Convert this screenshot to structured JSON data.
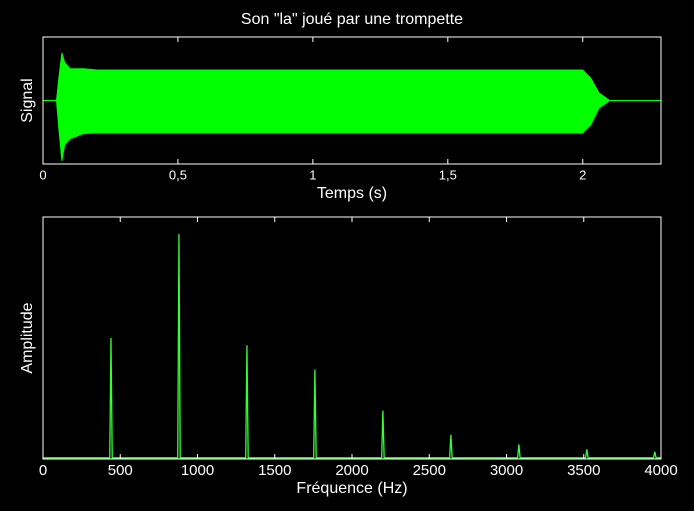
{
  "chart_data": [
    {
      "type": "envelope",
      "title": "Son \"la\" joué par une trompette",
      "xlabel": "Temps (s)",
      "ylabel": "Signal",
      "color": "#00ff00",
      "x": [
        0,
        0.05,
        0.06,
        0.07,
        0.08,
        0.1,
        0.15,
        0.2,
        2.0,
        2.03,
        2.06,
        2.1,
        2.29
      ],
      "upper": [
        0,
        0,
        0.4,
        0.75,
        0.6,
        0.5,
        0.5,
        0.48,
        0.48,
        0.35,
        0.12,
        0,
        0
      ],
      "lower": [
        0,
        0,
        -0.5,
        -0.95,
        -0.7,
        -0.6,
        -0.52,
        -0.51,
        -0.51,
        -0.38,
        -0.12,
        0,
        0
      ],
      "xlim": [
        0,
        2.29
      ],
      "ylim": [
        -1,
        1
      ],
      "xticks": [
        0,
        {
          "value": 0.5,
          "label": "0,5"
        },
        1,
        {
          "value": 1.5,
          "label": "1,5"
        },
        2
      ]
    },
    {
      "type": "line",
      "xlabel": "Fréquence (Hz)",
      "ylabel": "Amplitude",
      "color": "#33ff33",
      "x": [
        0,
        432,
        440,
        448,
        872,
        880,
        888,
        1312,
        1320,
        1328,
        1752,
        1760,
        1768,
        2192,
        2200,
        2208,
        2632,
        2640,
        2648,
        3072,
        3080,
        3088,
        3512,
        3520,
        3528,
        3952,
        3960,
        3968,
        4000
      ],
      "values": [
        0.005,
        0.005,
        0.5,
        0.005,
        0.005,
        0.93,
        0.005,
        0.005,
        0.47,
        0.005,
        0.005,
        0.37,
        0.005,
        0.005,
        0.2,
        0.005,
        0.005,
        0.1,
        0.005,
        0.005,
        0.06,
        0.005,
        0.005,
        0.04,
        0.005,
        0.005,
        0.03,
        0.005,
        0.005
      ],
      "xlim": [
        0,
        4000
      ],
      "ylim": [
        0,
        1
      ],
      "xticks": [
        0,
        500,
        1000,
        1500,
        2000,
        2500,
        3000,
        3500,
        4000
      ]
    }
  ]
}
